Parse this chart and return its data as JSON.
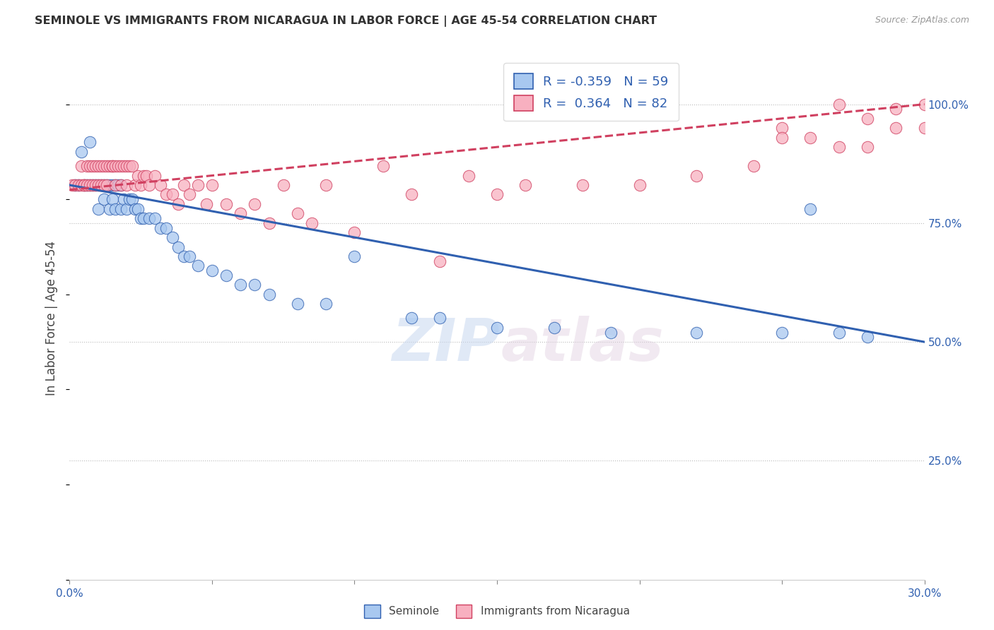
{
  "title": "SEMINOLE VS IMMIGRANTS FROM NICARAGUA IN LABOR FORCE | AGE 45-54 CORRELATION CHART",
  "source": "Source: ZipAtlas.com",
  "ylabel": "In Labor Force | Age 45-54",
  "x_min": 0.0,
  "x_max": 0.3,
  "y_min": 0.0,
  "y_max": 1.1,
  "x_ticks": [
    0.0,
    0.05,
    0.1,
    0.15,
    0.2,
    0.25,
    0.3
  ],
  "x_tick_labels": [
    "0.0%",
    "",
    "",
    "",
    "",
    "",
    "30.0%"
  ],
  "y_ticks": [
    0.25,
    0.5,
    0.75,
    1.0
  ],
  "y_tick_labels": [
    "25.0%",
    "50.0%",
    "75.0%",
    "100.0%"
  ],
  "blue_r": -0.359,
  "blue_n": 59,
  "pink_r": 0.364,
  "pink_n": 82,
  "blue_label": "Seminole",
  "pink_label": "Immigrants from Nicaragua",
  "blue_color": "#a8c8f0",
  "pink_color": "#f8b0c0",
  "blue_line_color": "#3060b0",
  "pink_line_color": "#d04060",
  "blue_line_y0": 0.83,
  "blue_line_y1": 0.5,
  "pink_line_y0": 0.82,
  "pink_line_y1": 1.0,
  "blue_scatter_x": [
    0.002,
    0.003,
    0.004,
    0.005,
    0.006,
    0.007,
    0.007,
    0.008,
    0.009,
    0.01,
    0.01,
    0.011,
    0.012,
    0.012,
    0.013,
    0.014,
    0.014,
    0.015,
    0.015,
    0.016,
    0.016,
    0.017,
    0.018,
    0.018,
    0.019,
    0.02,
    0.021,
    0.022,
    0.023,
    0.024,
    0.025,
    0.026,
    0.028,
    0.03,
    0.032,
    0.034,
    0.036,
    0.038,
    0.04,
    0.042,
    0.045,
    0.05,
    0.055,
    0.06,
    0.065,
    0.07,
    0.08,
    0.09,
    0.1,
    0.12,
    0.13,
    0.15,
    0.17,
    0.19,
    0.22,
    0.25,
    0.26,
    0.27,
    0.28
  ],
  "blue_scatter_y": [
    0.83,
    0.83,
    0.9,
    0.83,
    0.83,
    0.92,
    0.83,
    0.83,
    0.83,
    0.83,
    0.78,
    0.83,
    0.83,
    0.8,
    0.83,
    0.83,
    0.78,
    0.8,
    0.83,
    0.83,
    0.78,
    0.83,
    0.83,
    0.78,
    0.8,
    0.78,
    0.8,
    0.8,
    0.78,
    0.78,
    0.76,
    0.76,
    0.76,
    0.76,
    0.74,
    0.74,
    0.72,
    0.7,
    0.68,
    0.68,
    0.66,
    0.65,
    0.64,
    0.62,
    0.62,
    0.6,
    0.58,
    0.58,
    0.68,
    0.55,
    0.55,
    0.53,
    0.53,
    0.52,
    0.52,
    0.52,
    0.78,
    0.52,
    0.51
  ],
  "pink_scatter_x": [
    0.001,
    0.002,
    0.003,
    0.004,
    0.004,
    0.005,
    0.005,
    0.006,
    0.006,
    0.007,
    0.007,
    0.008,
    0.008,
    0.009,
    0.009,
    0.01,
    0.01,
    0.011,
    0.011,
    0.012,
    0.012,
    0.013,
    0.013,
    0.014,
    0.015,
    0.015,
    0.016,
    0.016,
    0.017,
    0.018,
    0.018,
    0.019,
    0.02,
    0.02,
    0.021,
    0.022,
    0.023,
    0.024,
    0.025,
    0.026,
    0.027,
    0.028,
    0.03,
    0.032,
    0.034,
    0.036,
    0.038,
    0.04,
    0.042,
    0.045,
    0.048,
    0.05,
    0.055,
    0.06,
    0.065,
    0.07,
    0.075,
    0.08,
    0.085,
    0.09,
    0.1,
    0.11,
    0.12,
    0.13,
    0.14,
    0.15,
    0.16,
    0.18,
    0.2,
    0.22,
    0.24,
    0.25,
    0.26,
    0.27,
    0.27,
    0.28,
    0.28,
    0.29,
    0.29,
    0.3,
    0.3,
    0.25
  ],
  "pink_scatter_y": [
    0.83,
    0.83,
    0.83,
    0.83,
    0.87,
    0.83,
    0.83,
    0.87,
    0.83,
    0.87,
    0.83,
    0.87,
    0.83,
    0.87,
    0.83,
    0.87,
    0.83,
    0.87,
    0.83,
    0.87,
    0.83,
    0.87,
    0.83,
    0.87,
    0.87,
    0.87,
    0.87,
    0.83,
    0.87,
    0.87,
    0.83,
    0.87,
    0.87,
    0.83,
    0.87,
    0.87,
    0.83,
    0.85,
    0.83,
    0.85,
    0.85,
    0.83,
    0.85,
    0.83,
    0.81,
    0.81,
    0.79,
    0.83,
    0.81,
    0.83,
    0.79,
    0.83,
    0.79,
    0.77,
    0.79,
    0.75,
    0.83,
    0.77,
    0.75,
    0.83,
    0.73,
    0.87,
    0.81,
    0.67,
    0.85,
    0.81,
    0.83,
    0.83,
    0.83,
    0.85,
    0.87,
    0.95,
    0.93,
    0.91,
    1.0,
    0.91,
    0.97,
    0.95,
    0.99,
    0.95,
    1.0,
    0.93
  ]
}
